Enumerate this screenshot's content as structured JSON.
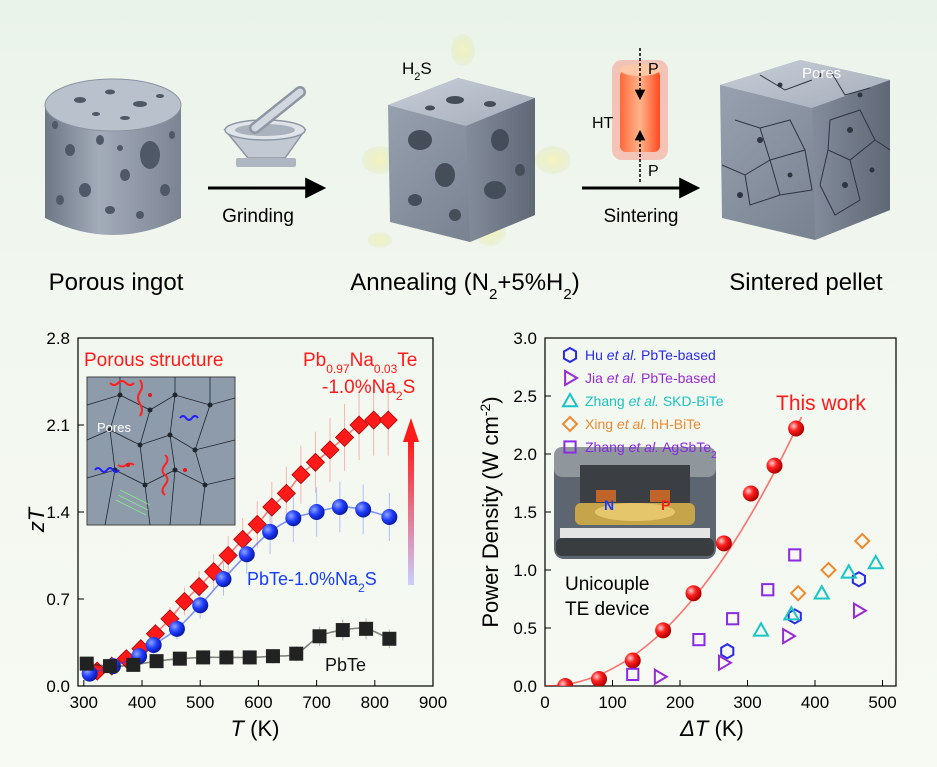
{
  "schematic": {
    "stage1": "Porous ingot",
    "step1": "Grinding",
    "stage2": "Annealing (N",
    "stage2_sub": "2",
    "stage2_mid": "+5%H",
    "stage2_sub2": "2",
    "stage2_end": ")",
    "gas": "H",
    "gas_sub": "2",
    "gas_end": "S",
    "step2": "Sintering",
    "pressure_top": "P",
    "pressure_bottom": "P",
    "heat": "HT",
    "stage3": "Sintered  pellet",
    "pores": "Pores"
  },
  "chart_data": [
    {
      "type": "line",
      "xlabel": "T (K)",
      "ylabel": "zT",
      "xlim": [
        290,
        900
      ],
      "ylim": [
        0,
        2.8
      ],
      "xticks": [
        300,
        400,
        500,
        600,
        700,
        800,
        900
      ],
      "yticks": [
        0.0,
        0.7,
        1.4,
        2.1,
        2.8
      ],
      "series": [
        {
          "name": "Pb0.97Na0.03Te -1.0%Na2S",
          "color": "#ff1a1a",
          "marker": "diamond",
          "x": [
            323,
            348,
            373,
            398,
            423,
            448,
            473,
            498,
            523,
            548,
            573,
            598,
            623,
            648,
            673,
            698,
            723,
            748,
            773,
            798,
            823
          ],
          "y": [
            0.12,
            0.16,
            0.22,
            0.3,
            0.42,
            0.54,
            0.68,
            0.8,
            0.92,
            1.05,
            1.18,
            1.3,
            1.44,
            1.55,
            1.7,
            1.8,
            1.9,
            2.0,
            2.1,
            2.14,
            2.14
          ]
        },
        {
          "name": "PbTe-1.0%Na2S",
          "color": "#1a3cff",
          "marker": "circle",
          "x": [
            310,
            350,
            395,
            420,
            460,
            500,
            540,
            580,
            620,
            660,
            700,
            740,
            780,
            825
          ],
          "y": [
            0.1,
            0.16,
            0.24,
            0.33,
            0.46,
            0.65,
            0.86,
            1.06,
            1.24,
            1.35,
            1.4,
            1.44,
            1.42,
            1.36
          ]
        },
        {
          "name": "PbTe",
          "color": "#222222",
          "marker": "square",
          "x": [
            305,
            345,
            385,
            425,
            465,
            505,
            545,
            585,
            625,
            665,
            705,
            745,
            785,
            825
          ],
          "y": [
            0.18,
            0.16,
            0.17,
            0.2,
            0.22,
            0.23,
            0.23,
            0.23,
            0.24,
            0.26,
            0.4,
            0.45,
            0.46,
            0.38
          ]
        }
      ],
      "annotations": {
        "title_left": "Porous structure",
        "label_red_main": "Pb",
        "label_red_sub1": "0.97",
        "label_red_mid": "Na",
        "label_red_sub2": "0.03",
        "label_red_end": "Te",
        "label_red_line2": "-1.0%Na",
        "label_red_line2_sub": "2",
        "label_red_line2_end": "S",
        "label_blue": "PbTe-1.0%Na",
        "label_blue_sub": "2",
        "label_blue_end": "S",
        "label_black": "PbTe",
        "inset_pores": "Pores"
      }
    },
    {
      "type": "scatter",
      "xlabel": "ΔT (K)",
      "ylabel": "Power Density (W cm",
      "ylabel_sup": "-2",
      "ylabel_end": ")",
      "xlim": [
        0,
        520
      ],
      "ylim": [
        0,
        3.0
      ],
      "xticks": [
        0,
        100,
        200,
        300,
        400,
        500
      ],
      "yticks": [
        0.0,
        0.5,
        1.0,
        1.5,
        2.0,
        2.5,
        3.0
      ],
      "series": [
        {
          "name": "This work",
          "color": "#ff1a1a",
          "marker": "ball",
          "x": [
            30,
            80,
            130,
            175,
            220,
            265,
            305,
            340,
            372
          ],
          "y": [
            0.0,
            0.06,
            0.22,
            0.48,
            0.8,
            1.23,
            1.66,
            1.9,
            2.22
          ]
        },
        {
          "name": "Hu et al. PbTe-based",
          "color": "#2a2ae6",
          "marker": "hexagon",
          "x": [
            270,
            370,
            465
          ],
          "y": [
            0.3,
            0.6,
            0.92
          ]
        },
        {
          "name": "Jia et al. PbTe-based",
          "color": "#9a2ad6",
          "marker": "triangle-right",
          "x": [
            170,
            265,
            360,
            465
          ],
          "y": [
            0.08,
            0.2,
            0.43,
            0.65
          ]
        },
        {
          "name": "Zhang et al. SKD-BiTe",
          "color": "#18c6c6",
          "marker": "triangle-up",
          "x": [
            320,
            365,
            410,
            450,
            490
          ],
          "y": [
            0.48,
            0.62,
            0.8,
            0.98,
            1.06
          ]
        },
        {
          "name": "Xing et al. hH-BiTe",
          "color": "#f08a30",
          "marker": "diamond-open",
          "x": [
            375,
            420,
            470
          ],
          "y": [
            0.8,
            1.0,
            1.25
          ]
        },
        {
          "name": "Zhang et al. AgSbTe2",
          "color": "#8a2ae6",
          "marker": "square-open",
          "x": [
            130,
            228,
            278,
            330,
            370
          ],
          "y": [
            0.1,
            0.4,
            0.58,
            0.83,
            1.13
          ]
        }
      ],
      "legend": [
        {
          "pre": "Hu ",
          "it": "et al.",
          "post": " PbTe-based"
        },
        {
          "pre": "Jia ",
          "it": "et al.",
          "post": " PbTe-based"
        },
        {
          "pre": "Zhang ",
          "it": "et al.",
          "post": " SKD-BiTe"
        },
        {
          "pre": "Xing ",
          "it": "et al.",
          "post": " hH-BiTe"
        },
        {
          "pre": "Zhang ",
          "it": "et al.",
          "post": " AgSbTe",
          "sub": "2"
        }
      ],
      "annotations": {
        "this_work": "This work",
        "device_line1": "Unicouple",
        "device_line2": "TE device",
        "n_label": "N",
        "p_label": "P"
      }
    }
  ]
}
